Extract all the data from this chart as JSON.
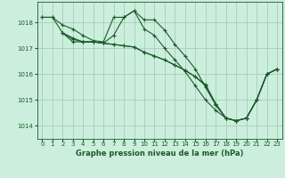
{
  "title": "Graphe pression niveau de la mer (hPa)",
  "background_color": "#cceedd",
  "grid_color": "#aaccbb",
  "line_color": "#1a5c28",
  "xlim": [
    -0.5,
    23.5
  ],
  "ylim": [
    1013.5,
    1018.8
  ],
  "yticks": [
    1014,
    1015,
    1016,
    1017,
    1018
  ],
  "xticks": [
    0,
    1,
    2,
    3,
    4,
    5,
    6,
    7,
    8,
    9,
    10,
    11,
    12,
    13,
    14,
    15,
    16,
    17,
    18,
    19,
    20,
    21,
    22,
    23
  ],
  "series": [
    {
      "x": [
        0,
        1,
        2,
        3,
        4,
        5,
        6,
        7,
        8,
        9,
        10,
        11,
        12,
        13,
        14,
        15,
        16,
        17,
        18,
        19,
        20,
        21,
        22,
        23
      ],
      "y": [
        1018.2,
        1018.2,
        1017.9,
        1017.75,
        1017.5,
        1017.3,
        1017.25,
        1018.2,
        1018.2,
        1018.45,
        1018.1,
        1018.1,
        1017.7,
        1017.15,
        1016.7,
        1016.2,
        1015.5,
        1014.8,
        1014.3,
        1014.2,
        1014.3,
        1015.0,
        1016.0,
        1016.2
      ]
    },
    {
      "x": [
        0,
        1,
        2,
        3,
        4,
        5,
        6,
        7,
        8,
        9,
        10,
        11,
        12,
        13,
        14,
        15,
        16,
        17,
        18,
        19,
        20,
        21,
        22,
        23
      ],
      "y": [
        1018.2,
        1018.2,
        1017.6,
        1017.35,
        1017.25,
        1017.25,
        1017.2,
        1017.15,
        1017.1,
        1017.05,
        1016.85,
        1016.7,
        1016.55,
        1016.35,
        1016.15,
        1015.9,
        1015.55,
        1014.85,
        1014.3,
        1014.2,
        1014.3,
        1015.0,
        1016.0,
        1016.2
      ]
    },
    {
      "x": [
        2,
        3,
        4,
        5,
        6,
        7,
        8,
        9,
        10,
        11,
        12,
        13,
        14,
        15,
        16,
        17,
        18,
        19,
        20,
        21,
        22,
        23
      ],
      "y": [
        1017.6,
        1017.4,
        1017.25,
        1017.25,
        1017.2,
        1017.5,
        1018.2,
        1018.45,
        1017.75,
        1017.5,
        1017.0,
        1016.55,
        1016.1,
        1015.55,
        1015.0,
        1014.6,
        1014.3,
        1014.2,
        1014.3,
        1015.0,
        1016.0,
        1016.2
      ]
    },
    {
      "x": [
        2,
        3,
        4,
        5,
        6,
        7,
        8,
        9,
        10,
        11,
        12,
        13,
        14,
        15,
        16,
        17,
        18,
        19,
        20,
        21,
        22,
        23
      ],
      "y": [
        1017.6,
        1017.25,
        1017.25,
        1017.25,
        1017.2,
        1017.15,
        1017.1,
        1017.05,
        1016.85,
        1016.7,
        1016.55,
        1016.35,
        1016.15,
        1015.9,
        1015.6,
        1014.85,
        1014.3,
        1014.2,
        1014.3,
        1015.0,
        1016.0,
        1016.2
      ]
    }
  ]
}
